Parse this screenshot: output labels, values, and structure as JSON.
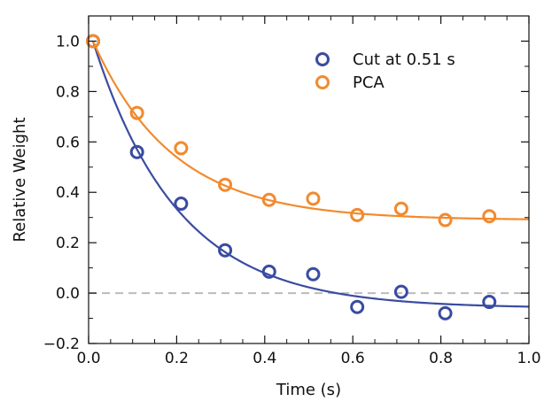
{
  "chart_data": {
    "type": "scatter",
    "title": "",
    "xlabel": "Time (s)",
    "ylabel": "Relative Weight",
    "xlim": [
      0.0,
      1.0
    ],
    "ylim": [
      -0.2,
      1.1
    ],
    "xticks": [
      "0.0",
      "0.2",
      "0.4",
      "0.6",
      "0.8",
      "1.0"
    ],
    "yticks": [
      "−0.2",
      "0.0",
      "0.2",
      "0.4",
      "0.6",
      "0.8",
      "1.0"
    ],
    "grid": false,
    "legend_position": "top-right",
    "reference_line": {
      "y": 0.0,
      "style": "dashed",
      "color": "#bbbbbb"
    },
    "x": [
      0.01,
      0.11,
      0.21,
      0.31,
      0.41,
      0.51,
      0.61,
      0.71,
      0.81,
      0.91
    ],
    "series": [
      {
        "name": "Cut at 0.51 s",
        "color": "#3a4ca1",
        "values": [
          1.0,
          0.56,
          0.355,
          0.17,
          0.085,
          0.075,
          -0.055,
          0.005,
          -0.08,
          -0.035
        ],
        "fit": {
          "asymptote": -0.06,
          "rate": 5.2
        }
      },
      {
        "name": "PCA",
        "color": "#f28a2e",
        "values": [
          1.0,
          0.715,
          0.575,
          0.43,
          0.37,
          0.375,
          0.31,
          0.335,
          0.29,
          0.305
        ],
        "fit": {
          "asymptote": 0.29,
          "rate": 5.5
        }
      }
    ]
  }
}
